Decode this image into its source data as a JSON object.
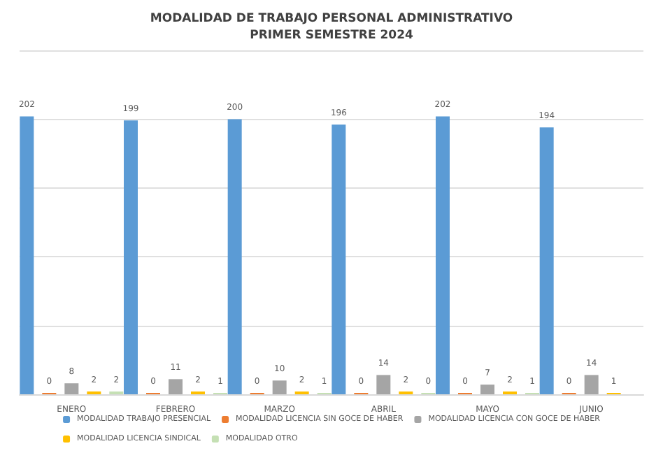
{
  "chart_data": {
    "type": "bar",
    "title": "MODALIDAD DE TRABAJO PERSONAL ADMINISTRATIVO",
    "subtitle": "PRIMER SEMESTRE 2024",
    "categories": [
      "ENERO",
      "FEBRERO",
      "MARZO",
      "ABRIL",
      "MAYO",
      "JUNIO"
    ],
    "series": [
      {
        "name": "MODALIDAD TRABAJO PRESENCIAL",
        "color": "#5b9bd5",
        "values": [
          202,
          199,
          200,
          196,
          202,
          194
        ]
      },
      {
        "name": "MODALIDAD LICENCIA SIN GOCE DE HABER",
        "color": "#ed7d31",
        "values": [
          0,
          0,
          0,
          0,
          0,
          0
        ]
      },
      {
        "name": "MODALIDAD LICENCIA CON GOCE DE HABER",
        "color": "#a5a5a5",
        "values": [
          8,
          11,
          10,
          14,
          7,
          14
        ]
      },
      {
        "name": "MODALIDAD LICENCIA SINDICAL",
        "color": "#ffc000",
        "values": [
          2,
          2,
          2,
          2,
          2,
          1
        ]
      },
      {
        "name": "MODALIDAD OTRO",
        "color": "#c5e0b4",
        "values": [
          2,
          1,
          1,
          0,
          1,
          null
        ]
      }
    ],
    "ylim": [
      0,
      250
    ],
    "yticks": [
      {
        "value": 0,
        "label": null
      },
      {
        "value": 50,
        "label": null
      },
      {
        "value": 100,
        "label": null
      },
      {
        "value": 150,
        "label": null
      },
      {
        "value": 200,
        "label": null
      },
      {
        "value": 250,
        "label": null
      }
    ],
    "grid": "y",
    "tick_labels": "x",
    "data_labels": true,
    "legend": "bottom"
  }
}
